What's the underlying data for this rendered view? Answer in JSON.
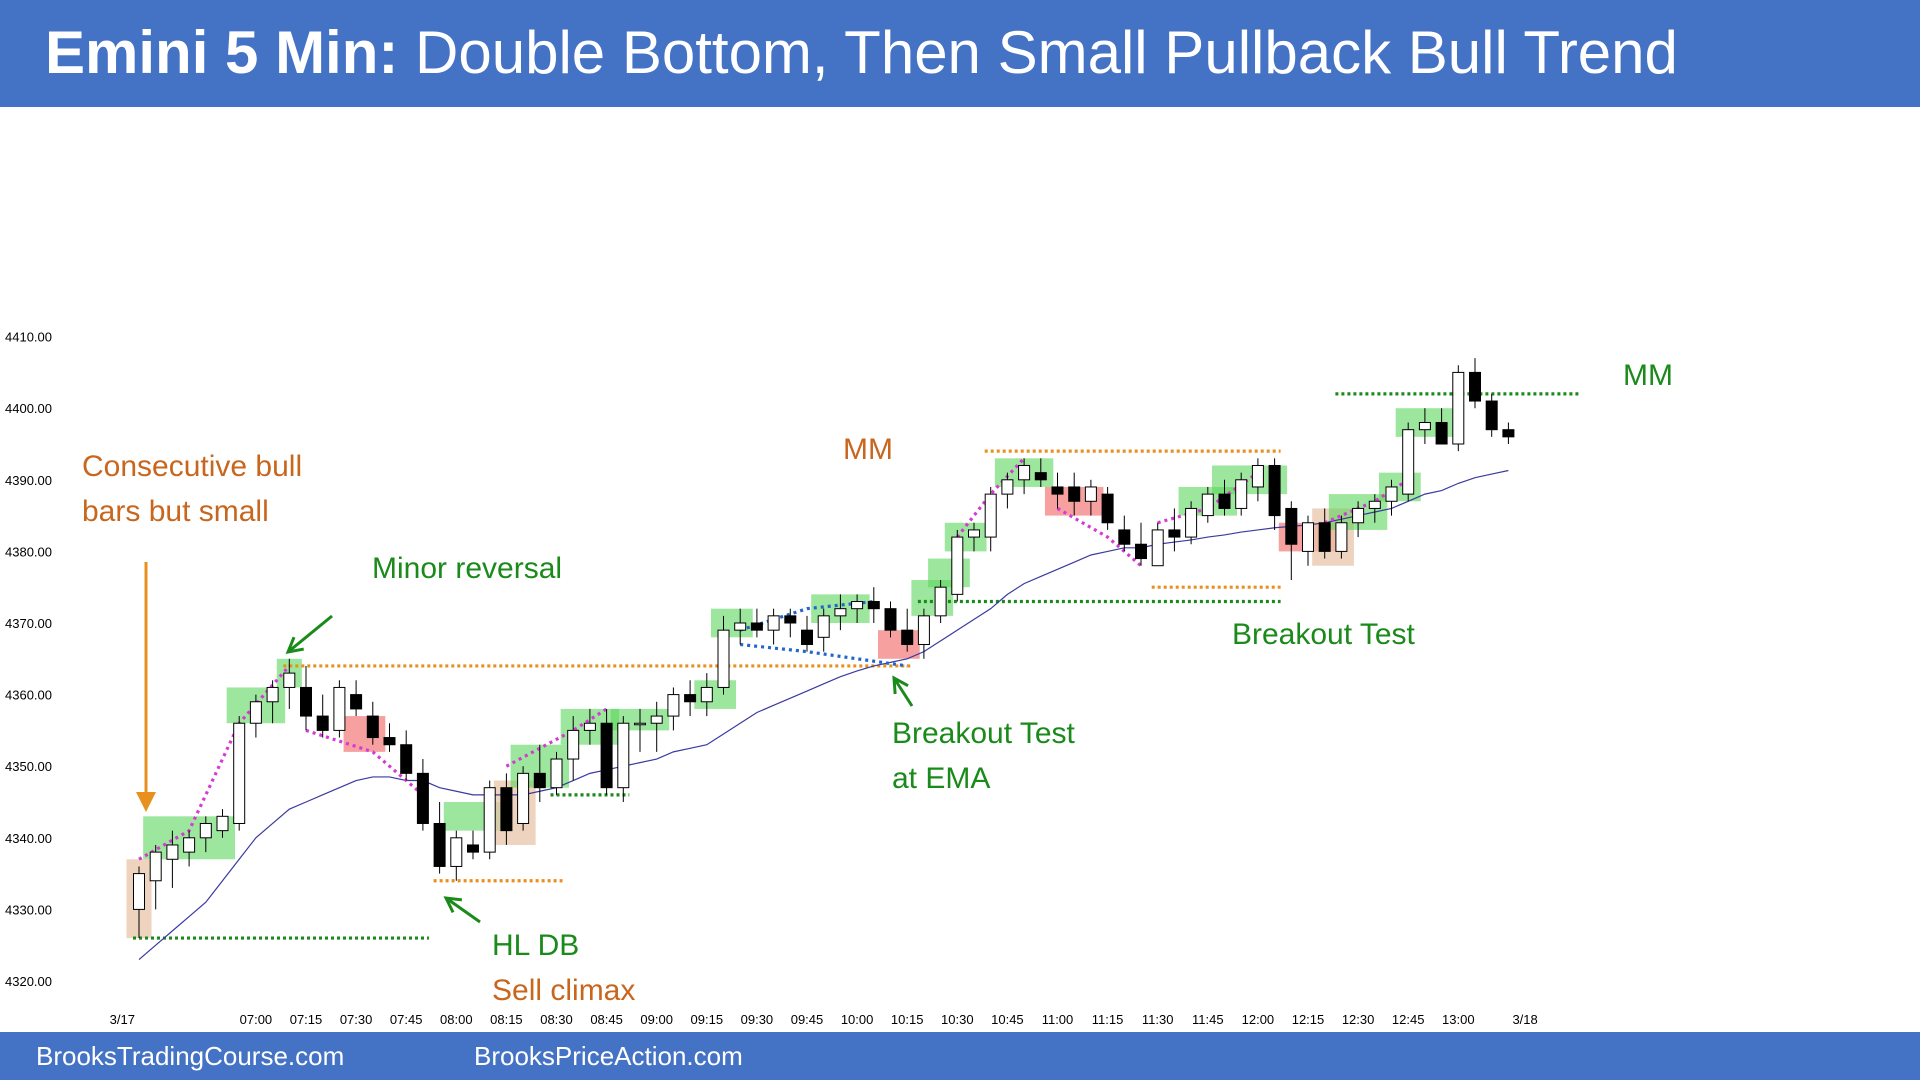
{
  "header": {
    "title_bold": "Emini 5 Min:",
    "title_rest": "Double Bottom, Then Small Pullback Bull Trend"
  },
  "footer": {
    "link1": "BrooksTradingCourse.com",
    "link2": "BrooksPriceAction.com"
  },
  "colors": {
    "header_bg": "#4472c4",
    "bull_highlight": "#5cd65c",
    "bear_highlight": "#f06060",
    "neutral_highlight": "#e8c4a8",
    "ema": "#3a3aa0",
    "orange": "#e8901e",
    "green_text": "#1a8a1a",
    "orange_text": "#c8661e",
    "magenta": "#d63ad6",
    "blue_dotted": "#2266cc"
  },
  "chart_data": {
    "type": "candlestick",
    "y_tick_labels": [
      "4320.00",
      "4330.00",
      "4340.00",
      "4350.00",
      "4360.00",
      "4370.00",
      "4380.00",
      "4390.00",
      "4400.00",
      "4410.00"
    ],
    "y_ticks": [
      4320,
      4330,
      4340,
      4350,
      4360,
      4370,
      4380,
      4390,
      4400,
      4410
    ],
    "ylim": [
      4317,
      4413
    ],
    "x_labels": [
      "3/17",
      "07:00",
      "07:15",
      "07:30",
      "07:45",
      "08:00",
      "08:15",
      "08:30",
      "08:45",
      "09:00",
      "09:15",
      "09:30",
      "09:45",
      "10:00",
      "10:15",
      "10:30",
      "10:45",
      "11:00",
      "11:15",
      "11:30",
      "11:45",
      "12:00",
      "12:15",
      "12:30",
      "12:45",
      "13:00",
      "3/18"
    ],
    "x_label_bars": [
      -1,
      7,
      10,
      13,
      16,
      19,
      22,
      25,
      28,
      31,
      34,
      37,
      40,
      43,
      46,
      49,
      52,
      55,
      58,
      61,
      64,
      67,
      70,
      73,
      76,
      79,
      83
    ],
    "bars": [
      {
        "o": 4330,
        "h": 4336,
        "l": 4326,
        "c": 4335
      },
      {
        "o": 4334,
        "h": 4339,
        "l": 4330,
        "c": 4338
      },
      {
        "o": 4337,
        "h": 4341,
        "l": 4333,
        "c": 4339
      },
      {
        "o": 4338,
        "h": 4341,
        "l": 4336,
        "c": 4340
      },
      {
        "o": 4340,
        "h": 4343,
        "l": 4338,
        "c": 4342
      },
      {
        "o": 4341,
        "h": 4344,
        "l": 4340,
        "c": 4343
      },
      {
        "o": 4342,
        "h": 4357,
        "l": 4341,
        "c": 4356
      },
      {
        "o": 4356,
        "h": 4360,
        "l": 4354,
        "c": 4359
      },
      {
        "o": 4359,
        "h": 4362,
        "l": 4356,
        "c": 4361
      },
      {
        "o": 4361,
        "h": 4365,
        "l": 4358,
        "c": 4363
      },
      {
        "o": 4361,
        "h": 4364,
        "l": 4355,
        "c": 4357
      },
      {
        "o": 4357,
        "h": 4360,
        "l": 4354,
        "c": 4355
      },
      {
        "o": 4355,
        "h": 4362,
        "l": 4354,
        "c": 4361
      },
      {
        "o": 4360,
        "h": 4362,
        "l": 4357,
        "c": 4358
      },
      {
        "o": 4357,
        "h": 4359,
        "l": 4353,
        "c": 4354
      },
      {
        "o": 4354,
        "h": 4356,
        "l": 4352,
        "c": 4353
      },
      {
        "o": 4353,
        "h": 4355,
        "l": 4348,
        "c": 4349
      },
      {
        "o": 4349,
        "h": 4351,
        "l": 4341,
        "c": 4342
      },
      {
        "o": 4342,
        "h": 4345,
        "l": 4335,
        "c": 4336
      },
      {
        "o": 4336,
        "h": 4341,
        "l": 4334,
        "c": 4340
      },
      {
        "o": 4339,
        "h": 4341,
        "l": 4337,
        "c": 4338
      },
      {
        "o": 4338,
        "h": 4348,
        "l": 4337,
        "c": 4347
      },
      {
        "o": 4347,
        "h": 4349,
        "l": 4339,
        "c": 4341
      },
      {
        "o": 4342,
        "h": 4350,
        "l": 4341,
        "c": 4349
      },
      {
        "o": 4349,
        "h": 4353,
        "l": 4345,
        "c": 4347
      },
      {
        "o": 4347,
        "h": 4352,
        "l": 4346,
        "c": 4351
      },
      {
        "o": 4351,
        "h": 4357,
        "l": 4348,
        "c": 4355
      },
      {
        "o": 4355,
        "h": 4358,
        "l": 4353,
        "c": 4356
      },
      {
        "o": 4356,
        "h": 4358,
        "l": 4346,
        "c": 4347
      },
      {
        "o": 4347,
        "h": 4357,
        "l": 4345,
        "c": 4356
      },
      {
        "o": 4356,
        "h": 4358,
        "l": 4352,
        "c": 4356
      },
      {
        "o": 4356,
        "h": 4359,
        "l": 4352,
        "c": 4357
      },
      {
        "o": 4357,
        "h": 4361,
        "l": 4355,
        "c": 4360
      },
      {
        "o": 4360,
        "h": 4362,
        "l": 4357,
        "c": 4359
      },
      {
        "o": 4359,
        "h": 4363,
        "l": 4357,
        "c": 4361
      },
      {
        "o": 4361,
        "h": 4371,
        "l": 4360,
        "c": 4369
      },
      {
        "o": 4369,
        "h": 4372,
        "l": 4367,
        "c": 4370
      },
      {
        "o": 4370,
        "h": 4372,
        "l": 4368,
        "c": 4369
      },
      {
        "o": 4369,
        "h": 4372,
        "l": 4367,
        "c": 4371
      },
      {
        "o": 4371,
        "h": 4372,
        "l": 4368,
        "c": 4370
      },
      {
        "o": 4369,
        "h": 4371,
        "l": 4366,
        "c": 4367
      },
      {
        "o": 4368,
        "h": 4372,
        "l": 4366,
        "c": 4371
      },
      {
        "o": 4371,
        "h": 4374,
        "l": 4369,
        "c": 4372
      },
      {
        "o": 4372,
        "h": 4374,
        "l": 4370,
        "c": 4373
      },
      {
        "o": 4373,
        "h": 4375,
        "l": 4370,
        "c": 4372
      },
      {
        "o": 4372,
        "h": 4373,
        "l": 4368,
        "c": 4369
      },
      {
        "o": 4369,
        "h": 4372,
        "l": 4366,
        "c": 4367
      },
      {
        "o": 4367,
        "h": 4372,
        "l": 4365,
        "c": 4371
      },
      {
        "o": 4371,
        "h": 4376,
        "l": 4370,
        "c": 4375
      },
      {
        "o": 4374,
        "h": 4383,
        "l": 4373,
        "c": 4382
      },
      {
        "o": 4382,
        "h": 4384,
        "l": 4380,
        "c": 4383
      },
      {
        "o": 4382,
        "h": 4389,
        "l": 4380,
        "c": 4388
      },
      {
        "o": 4388,
        "h": 4391,
        "l": 4386,
        "c": 4390
      },
      {
        "o": 4390,
        "h": 4393,
        "l": 4388,
        "c": 4392
      },
      {
        "o": 4391,
        "h": 4393,
        "l": 4389,
        "c": 4390
      },
      {
        "o": 4389,
        "h": 4391,
        "l": 4386,
        "c": 4388
      },
      {
        "o": 4389,
        "h": 4391,
        "l": 4385,
        "c": 4387
      },
      {
        "o": 4387,
        "h": 4390,
        "l": 4385,
        "c": 4389
      },
      {
        "o": 4388,
        "h": 4389,
        "l": 4383,
        "c": 4384
      },
      {
        "o": 4383,
        "h": 4385,
        "l": 4380,
        "c": 4381
      },
      {
        "o": 4381,
        "h": 4384,
        "l": 4378,
        "c": 4379
      },
      {
        "o": 4378,
        "h": 4384,
        "l": 4378,
        "c": 4383
      },
      {
        "o": 4383,
        "h": 4386,
        "l": 4380,
        "c": 4382
      },
      {
        "o": 4382,
        "h": 4387,
        "l": 4381,
        "c": 4386
      },
      {
        "o": 4385,
        "h": 4389,
        "l": 4384,
        "c": 4388
      },
      {
        "o": 4388,
        "h": 4390,
        "l": 4385,
        "c": 4386
      },
      {
        "o": 4386,
        "h": 4391,
        "l": 4385,
        "c": 4390
      },
      {
        "o": 4389,
        "h": 4393,
        "l": 4387,
        "c": 4392
      },
      {
        "o": 4392,
        "h": 4393,
        "l": 4383,
        "c": 4385
      },
      {
        "o": 4386,
        "h": 4387,
        "l": 4376,
        "c": 4381
      },
      {
        "o": 4380,
        "h": 4385,
        "l": 4378,
        "c": 4384
      },
      {
        "o": 4384,
        "h": 4386,
        "l": 4379,
        "c": 4380
      },
      {
        "o": 4380,
        "h": 4385,
        "l": 4379,
        "c": 4384
      },
      {
        "o": 4384,
        "h": 4387,
        "l": 4382,
        "c": 4386
      },
      {
        "o": 4386,
        "h": 4388,
        "l": 4384,
        "c": 4387
      },
      {
        "o": 4387,
        "h": 4390,
        "l": 4385,
        "c": 4389
      },
      {
        "o": 4388,
        "h": 4398,
        "l": 4387,
        "c": 4397
      },
      {
        "o": 4397,
        "h": 4400,
        "l": 4395,
        "c": 4398
      },
      {
        "o": 4398,
        "h": 4400,
        "l": 4395,
        "c": 4395
      },
      {
        "o": 4395,
        "h": 4406,
        "l": 4394,
        "c": 4405
      },
      {
        "o": 4405,
        "h": 4407,
        "l": 4400,
        "c": 4401
      },
      {
        "o": 4401,
        "h": 4402,
        "l": 4396,
        "c": 4397
      },
      {
        "o": 4397,
        "h": 4398,
        "l": 4395,
        "c": 4396
      }
    ],
    "ema": [
      4323,
      4325,
      4327,
      4329,
      4331,
      4334,
      4337,
      4340,
      4342,
      4344,
      4345,
      4346,
      4347,
      4348,
      4348.5,
      4348.5,
      4348,
      4348,
      4347,
      4346.5,
      4346,
      4346,
      4346,
      4346,
      4346.5,
      4347,
      4348,
      4349,
      4349.5,
      4350,
      4350.5,
      4351,
      4352,
      4352.5,
      4353,
      4354.5,
      4356,
      4357.5,
      4358.5,
      4359.5,
      4360.5,
      4361.5,
      4362.5,
      4363.3,
      4364,
      4364.5,
      4365,
      4366,
      4367.5,
      4369,
      4370.5,
      4372,
      4374,
      4375.5,
      4376.5,
      4377.5,
      4378.5,
      4379.5,
      4380,
      4380.5,
      4380.5,
      4381,
      4381.3,
      4381.6,
      4382,
      4382.3,
      4382.7,
      4383,
      4383.3,
      4383.5,
      4383.7,
      4384,
      4384.5,
      4385,
      4385.5,
      4386,
      4387,
      4388,
      4388.5,
      4389.5,
      4390.3,
      4390.8,
      4391.3
    ],
    "highlights": [
      {
        "from": 0,
        "to": 0,
        "kind": "neutral",
        "lo": 4326,
        "hi": 4337
      },
      {
        "from": 1,
        "to": 5,
        "kind": "bull",
        "lo": 4337,
        "hi": 4343
      },
      {
        "from": 6,
        "to": 8,
        "kind": "bull",
        "lo": 4356,
        "hi": 4361
      },
      {
        "from": 9,
        "to": 9,
        "kind": "bull",
        "lo": 4361,
        "hi": 4365
      },
      {
        "from": 13,
        "to": 14,
        "kind": "bear",
        "lo": 4352,
        "hi": 4357
      },
      {
        "from": 19,
        "to": 21,
        "kind": "bull",
        "lo": 4341,
        "hi": 4345
      },
      {
        "from": 22,
        "to": 23,
        "kind": "neutral",
        "lo": 4339,
        "hi": 4348
      },
      {
        "from": 23,
        "to": 25,
        "kind": "bull",
        "lo": 4347,
        "hi": 4353
      },
      {
        "from": 26,
        "to": 28,
        "kind": "bull",
        "lo": 4353,
        "hi": 4358
      },
      {
        "from": 29,
        "to": 31,
        "kind": "bull",
        "lo": 4355,
        "hi": 4358
      },
      {
        "from": 34,
        "to": 35,
        "kind": "bull",
        "lo": 4358,
        "hi": 4362
      },
      {
        "from": 35,
        "to": 36,
        "kind": "bull",
        "lo": 4368,
        "hi": 4372
      },
      {
        "from": 41,
        "to": 43,
        "kind": "bull",
        "lo": 4370,
        "hi": 4374
      },
      {
        "from": 45,
        "to": 46,
        "kind": "bear",
        "lo": 4365,
        "hi": 4369
      },
      {
        "from": 47,
        "to": 48,
        "kind": "bull",
        "lo": 4371,
        "hi": 4376
      },
      {
        "from": 48,
        "to": 49,
        "kind": "bull",
        "lo": 4375,
        "hi": 4379
      },
      {
        "from": 49,
        "to": 50,
        "kind": "bull",
        "lo": 4380,
        "hi": 4384
      },
      {
        "from": 52,
        "to": 54,
        "kind": "bull",
        "lo": 4389,
        "hi": 4393
      },
      {
        "from": 55,
        "to": 57,
        "kind": "bear",
        "lo": 4385,
        "hi": 4389
      },
      {
        "from": 63,
        "to": 65,
        "kind": "bull",
        "lo": 4385,
        "hi": 4389
      },
      {
        "from": 65,
        "to": 68,
        "kind": "bull",
        "lo": 4388,
        "hi": 4392
      },
      {
        "from": 69,
        "to": 71,
        "kind": "bear",
        "lo": 4380,
        "hi": 4384
      },
      {
        "from": 71,
        "to": 72,
        "kind": "neutral",
        "lo": 4378,
        "hi": 4386
      },
      {
        "from": 72,
        "to": 74,
        "kind": "bull",
        "lo": 4383,
        "hi": 4388
      },
      {
        "from": 75,
        "to": 76,
        "kind": "bull",
        "lo": 4387,
        "hi": 4391
      },
      {
        "from": 76,
        "to": 78,
        "kind": "bull",
        "lo": 4396,
        "hi": 4400
      }
    ],
    "levels": [
      {
        "price": 4326,
        "from": 0,
        "to": 17,
        "color": "green"
      },
      {
        "price": 4364,
        "from": 9,
        "to": 46,
        "color": "orange"
      },
      {
        "price": 4334,
        "from": 18,
        "to": 25,
        "color": "orange"
      },
      {
        "price": 4346,
        "from": 25,
        "to": 29,
        "color": "green"
      },
      {
        "price": 4373,
        "from": 47,
        "to": 68,
        "color": "green"
      },
      {
        "price": 4394,
        "from": 51,
        "to": 68,
        "color": "orange"
      },
      {
        "price": 4375,
        "from": 61,
        "to": 68,
        "color": "orange"
      },
      {
        "price": 4402,
        "from": 72,
        "to": 86,
        "color": "green"
      }
    ],
    "magenta_segments": [
      [
        [
          0,
          4337
        ],
        [
          3,
          4341
        ],
        [
          6,
          4356
        ],
        [
          9,
          4364
        ]
      ],
      [
        [
          10,
          4355
        ],
        [
          14,
          4352
        ],
        [
          17,
          4346
        ]
      ],
      [
        [
          22,
          4350
        ],
        [
          26,
          4355
        ],
        [
          28,
          4358
        ]
      ],
      [
        [
          49,
          4382
        ],
        [
          51,
          4388
        ],
        [
          53,
          4393
        ]
      ],
      [
        [
          55,
          4386
        ],
        [
          58,
          4382
        ],
        [
          60,
          4378
        ]
      ],
      [
        [
          61,
          4384
        ],
        [
          64,
          4386
        ],
        [
          67,
          4391
        ]
      ],
      [
        [
          71,
          4384
        ],
        [
          74,
          4387
        ],
        [
          76,
          4390
        ]
      ]
    ],
    "blue_segments": [
      [
        [
          36,
          4369
        ],
        [
          40,
          4372
        ],
        [
          44,
          4373
        ]
      ],
      [
        [
          36,
          4367
        ],
        [
          40,
          4366
        ],
        [
          46,
          4364
        ]
      ]
    ],
    "annotations": [
      {
        "lines": [
          "Consecutive bull",
          "bars but small"
        ],
        "color": "orange",
        "size": 30
      },
      {
        "lines": [
          "Minor reversal"
        ],
        "color": "green",
        "size": 30
      },
      {
        "lines": [
          "MM"
        ],
        "color": "orange",
        "size": 30
      },
      {
        "lines": [
          "MM"
        ],
        "color": "green",
        "size": 30
      },
      {
        "lines": [
          "Breakout Test",
          "at EMA"
        ],
        "color": "green",
        "size": 30
      },
      {
        "lines": [
          "Breakout Test"
        ],
        "color": "green",
        "size": 30
      },
      {
        "lines": [
          "HL DB"
        ],
        "color": "green",
        "size": 30
      },
      {
        "lines": [
          "Sell climax"
        ],
        "color": "orange",
        "size": 30
      }
    ]
  }
}
